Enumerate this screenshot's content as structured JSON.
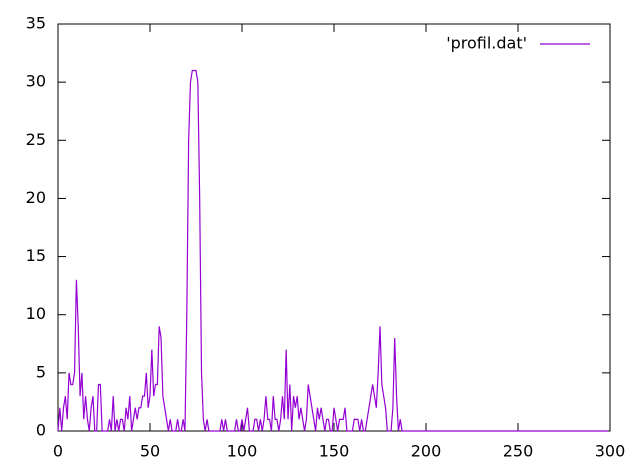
{
  "chart_data": {
    "type": "line",
    "x": [
      0,
      1,
      2,
      3,
      4,
      5,
      6,
      7,
      8,
      9,
      10,
      11,
      12,
      13,
      14,
      15,
      16,
      17,
      18,
      19,
      20,
      21,
      22,
      23,
      24,
      25,
      26,
      27,
      28,
      29,
      30,
      31,
      32,
      33,
      34,
      35,
      36,
      37,
      38,
      39,
      40,
      41,
      42,
      43,
      44,
      45,
      46,
      47,
      48,
      49,
      50,
      51,
      52,
      53,
      54,
      55,
      56,
      57,
      58,
      59,
      60,
      61,
      62,
      63,
      64,
      65,
      66,
      67,
      68,
      69,
      70,
      71,
      72,
      73,
      74,
      75,
      76,
      77,
      78,
      79,
      80,
      81,
      82,
      83,
      84,
      85,
      86,
      87,
      88,
      89,
      90,
      91,
      92,
      93,
      94,
      95,
      96,
      97,
      98,
      99,
      100,
      101,
      102,
      103,
      104,
      105,
      106,
      107,
      108,
      109,
      110,
      111,
      112,
      113,
      114,
      115,
      116,
      117,
      118,
      119,
      120,
      121,
      122,
      123,
      124,
      125,
      126,
      127,
      128,
      129,
      130,
      131,
      132,
      133,
      134,
      135,
      136,
      137,
      138,
      139,
      140,
      141,
      142,
      143,
      144,
      145,
      146,
      147,
      148,
      149,
      150,
      151,
      152,
      153,
      154,
      155,
      156,
      157,
      158,
      159,
      160,
      161,
      162,
      163,
      164,
      165,
      166,
      167,
      168,
      169,
      170,
      171,
      172,
      173,
      174,
      175,
      176,
      177,
      178,
      179,
      180,
      181,
      182,
      183,
      184,
      185,
      186,
      187,
      188,
      189,
      190,
      299
    ],
    "series": [
      {
        "name": "'profil.dat'",
        "color": "#9400d3",
        "values": [
          0,
          2,
          0,
          2,
          3,
          1,
          5,
          4,
          4,
          5,
          13,
          9,
          3,
          5,
          1,
          3,
          1,
          0,
          2,
          3,
          0,
          0,
          4,
          4,
          0,
          0,
          0,
          0,
          1,
          0,
          3,
          0,
          1,
          0,
          1,
          1,
          0,
          2,
          1,
          3,
          0,
          1,
          2,
          1,
          2,
          2,
          3,
          3,
          5,
          2,
          3,
          7,
          3,
          4,
          4,
          9,
          8,
          3,
          2,
          1,
          0,
          1,
          0,
          0,
          0,
          1,
          0,
          0,
          1,
          0,
          10,
          25,
          30,
          31,
          31,
          31,
          30,
          20,
          5,
          1,
          0,
          1,
          0,
          0,
          0,
          0,
          0,
          0,
          0,
          1,
          0,
          1,
          0,
          0,
          0,
          0,
          0,
          1,
          0,
          0,
          1,
          0,
          1,
          2,
          0,
          0,
          0,
          1,
          1,
          0,
          1,
          0,
          1,
          3,
          1,
          1,
          0,
          3,
          1,
          1,
          0,
          1,
          3,
          1,
          7,
          1,
          4,
          0,
          3,
          2,
          3,
          1,
          2,
          1,
          0,
          1,
          4,
          3,
          2,
          1,
          0,
          2,
          1,
          2,
          1,
          0,
          1,
          1,
          0,
          0,
          2,
          1,
          0,
          1,
          1,
          1,
          2,
          0,
          0,
          0,
          0,
          1,
          1,
          1,
          0,
          1,
          0,
          0,
          1,
          2,
          3,
          4,
          3,
          2,
          5,
          9,
          4,
          3,
          2,
          0,
          0,
          0,
          2,
          8,
          3,
          0,
          1,
          0,
          0,
          0,
          0,
          0
        ]
      }
    ],
    "xlim": [
      0,
      300
    ],
    "xticks": [
      0,
      50,
      100,
      150,
      200,
      250,
      300
    ],
    "ylim": [
      0,
      35
    ],
    "yticks": [
      0,
      5,
      10,
      15,
      20,
      25,
      30,
      35
    ],
    "grid": false,
    "legend": "top-right"
  }
}
